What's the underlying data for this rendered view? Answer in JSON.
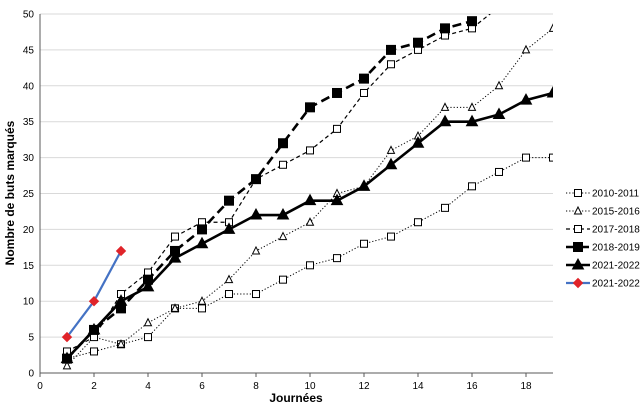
{
  "chart_data": {
    "type": "line",
    "xlabel": "Journées",
    "ylabel": "Nombre de buts marqués",
    "xlim": [
      0,
      19
    ],
    "ylim": [
      0,
      50
    ],
    "xticks": [
      0,
      2,
      4,
      6,
      8,
      10,
      12,
      14,
      16,
      18
    ],
    "yticks": [
      0,
      5,
      10,
      15,
      20,
      25,
      30,
      35,
      40,
      45,
      50
    ],
    "grid": "horizontal",
    "legend_position": "right",
    "series": [
      {
        "name": "2010-2011",
        "style": "dotted",
        "marker": "square-open",
        "color": "#000000",
        "x": [
          1,
          2,
          3,
          4,
          5,
          6,
          7,
          8,
          9,
          10,
          11,
          12,
          13,
          14,
          15,
          16,
          17,
          18,
          19
        ],
        "y": [
          2,
          3,
          4,
          5,
          9,
          9,
          11,
          11,
          13,
          15,
          16,
          18,
          19,
          21,
          23,
          26,
          28,
          30,
          30
        ]
      },
      {
        "name": "2015-2016",
        "style": "dotted",
        "marker": "triangle-open",
        "color": "#000000",
        "x": [
          1,
          2,
          3,
          4,
          5,
          6,
          7,
          8,
          9,
          10,
          11,
          12,
          13,
          14,
          15,
          16,
          17,
          18,
          19
        ],
        "y": [
          1,
          5,
          4,
          7,
          9,
          10,
          13,
          17,
          19,
          21,
          25,
          26,
          31,
          33,
          37,
          37,
          40,
          45,
          48
        ]
      },
      {
        "name": "2017-2018",
        "style": "dashed",
        "marker": "square-open",
        "color": "#000000",
        "x": [
          1,
          2,
          3,
          4,
          5,
          6,
          7,
          8,
          9,
          10,
          11,
          12,
          13,
          14,
          15,
          16,
          17
        ],
        "y": [
          3,
          5,
          11,
          14,
          19,
          21,
          21,
          27,
          29,
          31,
          34,
          39,
          43,
          45,
          47,
          48,
          51
        ]
      },
      {
        "name": "2018-2019",
        "style": "dashed-bold",
        "marker": "square-filled",
        "color": "#000000",
        "x": [
          1,
          2,
          3,
          4,
          5,
          6,
          7,
          8,
          9,
          10,
          11,
          12,
          13,
          14,
          15,
          16
        ],
        "y": [
          2,
          6,
          9,
          13,
          17,
          20,
          24,
          27,
          32,
          37,
          39,
          41,
          45,
          46,
          48,
          49
        ]
      },
      {
        "name": "2021-2022",
        "style": "solid-bold",
        "marker": "triangle-filled",
        "color": "#000000",
        "x": [
          1,
          2,
          3,
          4,
          5,
          6,
          7,
          8,
          9,
          10,
          11,
          12,
          13,
          14,
          15,
          16,
          17,
          18,
          19
        ],
        "y": [
          2,
          6,
          10,
          12,
          16,
          18,
          20,
          22,
          22,
          24,
          24,
          26,
          29,
          32,
          35,
          35,
          36,
          38,
          39
        ]
      },
      {
        "name": "2021-2022",
        "style": "solid-blue",
        "marker": "diamond-red",
        "color": "#4472C4",
        "markerColor": "#E0242A",
        "x": [
          1,
          2,
          3
        ],
        "y": [
          5,
          10,
          17
        ]
      }
    ]
  }
}
